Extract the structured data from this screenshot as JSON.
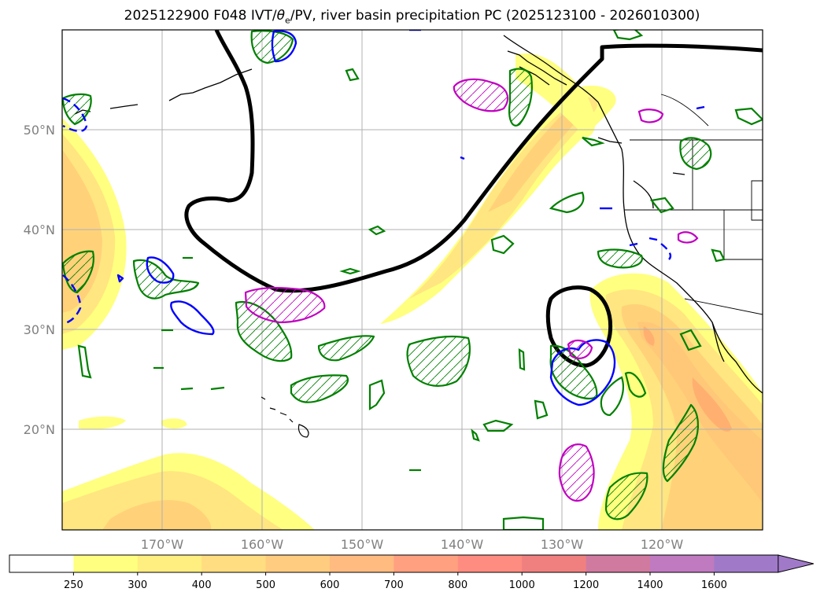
{
  "title": {
    "prefix": "2025122900 F048 IVT/",
    "theta": "θ",
    "sub": "e",
    "suffix": "/PV, river basin precipitation PC (2025123100 - 2026010300)"
  },
  "map": {
    "projection": "plate-carree",
    "lon_range": [
      -180,
      -110
    ],
    "lat_range": [
      10,
      60
    ],
    "lat_ticks": [
      "50°N",
      "40°N",
      "30°N",
      "20°N"
    ],
    "lon_ticks": [
      "170°W",
      "160°W",
      "150°W",
      "140°W",
      "130°W",
      "120°W"
    ],
    "grid": true,
    "contour_colors": {
      "thick_line": "#000000",
      "green": "#008000",
      "blue": "#0000ff",
      "magenta": "#c000c0"
    }
  },
  "colorbar": {
    "labels": [
      "250",
      "300",
      "400",
      "500",
      "600",
      "700",
      "800",
      "1000",
      "1200",
      "1400",
      "1600"
    ],
    "colors": [
      "#ffffff",
      "#ffff80",
      "#ffee80",
      "#ffdd80",
      "#ffcc80",
      "#ffbb80",
      "#ffa080",
      "#ff8c80",
      "#f08080",
      "#d07aa0",
      "#c07ac0",
      "#a07ac8"
    ],
    "extend": "max"
  }
}
